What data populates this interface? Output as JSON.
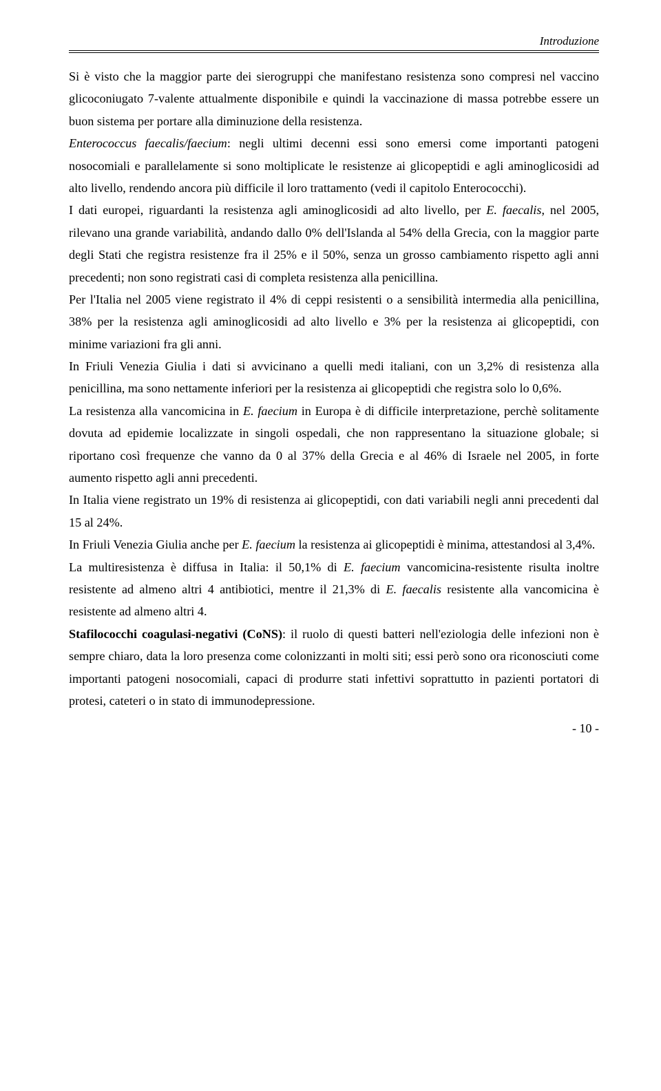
{
  "header": {
    "section": "Introduzione"
  },
  "paragraphs": {
    "p1": "Si è visto che la maggior parte dei sierogruppi che manifestano resistenza sono compresi nel vaccino glicoconiugato 7-valente attualmente disponibile e quindi la vaccinazione di massa potrebbe essere un buon sistema per portare alla diminuzione della resistenza.",
    "p2_em": "Enterococcus faecalis/faecium",
    "p2_rest": ": negli ultimi decenni essi sono emersi come importanti patogeni nosocomiali e parallelamente si sono moltiplicate le resistenze ai glicopeptidi e agli aminoglicosidi ad alto livello, rendendo ancora più difficile il loro trattamento (vedi il capitolo Enterococchi).",
    "p3_a": "I dati europei, riguardanti la resistenza agli aminoglicosidi ad alto livello, per ",
    "p3_em": "E. faecalis",
    "p3_b": ", nel 2005, rilevano una grande variabilità, andando dallo 0% dell'Islanda al 54% della Grecia, con la maggior parte degli Stati che registra resistenze fra il 25% e il 50%, senza un grosso cambiamento rispetto agli anni precedenti; non sono registrati casi di completa resistenza alla penicillina.",
    "p4": "Per l'Italia nel 2005 viene registrato il 4% di ceppi resistenti o a sensibilità intermedia alla penicillina, 38% per la resistenza agli aminoglicosidi ad alto livello e 3% per la resistenza ai glicopeptidi, con minime variazioni fra gli anni.",
    "p5": "In Friuli Venezia Giulia i dati si avvicinano a quelli medi italiani, con un 3,2% di resistenza alla penicillina, ma sono nettamente inferiori per la resistenza ai glicopeptidi che registra solo lo 0,6%.",
    "p6_a": "La resistenza alla vancomicina in ",
    "p6_em": "E. faecium",
    "p6_b": " in Europa è di difficile interpretazione, perchè solitamente dovuta ad epidemie localizzate in singoli ospedali, che non rappresentano la situazione globale; si riportano così frequenze che vanno da 0 al 37% della Grecia e al 46% di Israele nel 2005, in forte aumento rispetto agli anni precedenti.",
    "p7": "In Italia viene registrato un 19% di resistenza ai glicopeptidi, con dati variabili negli anni precedenti dal 15 al 24%.",
    "p8_a": "In Friuli Venezia Giulia anche per ",
    "p8_em": "E. faecium",
    "p8_b": " la resistenza ai glicopeptidi è minima, attestandosi al 3,4%.",
    "p9_a": "La multiresistenza è diffusa in Italia: il 50,1% di ",
    "p9_em1": "E. faecium",
    "p9_b": " vancomicina-resistente risulta inoltre resistente ad almeno altri 4 antibiotici, mentre il 21,3% di ",
    "p9_em2": "E. faecalis",
    "p9_c": " resistente alla vancomicina è resistente ad almeno altri 4.",
    "p10_bold": "Stafilococchi coagulasi-negativi (CoNS)",
    "p10_rest": ": il ruolo di questi batteri nell'eziologia delle infezioni non è sempre chiaro, data la loro presenza come colonizzanti in molti siti; essi però sono ora riconosciuti come importanti patogeni nosocomiali, capaci di produrre stati infettivi soprattutto in pazienti portatori di protesi, cateteri o in stato di immunodepressione."
  },
  "footer": {
    "page": "- 10 -"
  }
}
